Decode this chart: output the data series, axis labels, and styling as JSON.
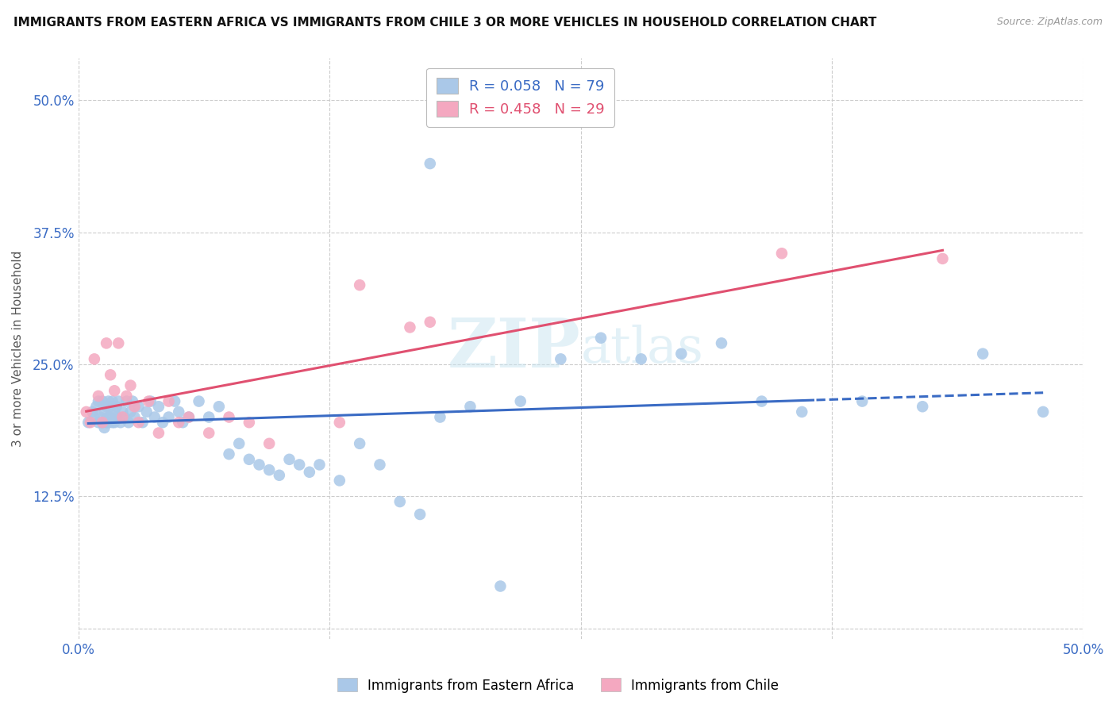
{
  "title": "IMMIGRANTS FROM EASTERN AFRICA VS IMMIGRANTS FROM CHILE 3 OR MORE VEHICLES IN HOUSEHOLD CORRELATION CHART",
  "source": "Source: ZipAtlas.com",
  "ylabel": "3 or more Vehicles in Household",
  "y_ticks": [
    0.0,
    0.125,
    0.25,
    0.375,
    0.5
  ],
  "y_tick_labels": [
    "",
    "12.5%",
    "25.0%",
    "37.5%",
    "50.0%"
  ],
  "x_lim": [
    0.0,
    0.5
  ],
  "y_lim": [
    -0.01,
    0.54
  ],
  "blue_R": "0.058",
  "blue_N": "79",
  "pink_R": "0.458",
  "pink_N": "29",
  "blue_scatter_color": "#aac8e8",
  "pink_scatter_color": "#f4a8c0",
  "blue_line_color": "#3a6bc4",
  "pink_line_color": "#e05070",
  "legend_label_blue": "Immigrants from Eastern Africa",
  "legend_label_pink": "Immigrants from Chile",
  "watermark_zip": "ZIP",
  "watermark_atlas": "atlas",
  "blue_scatter_x": [
    0.005,
    0.007,
    0.008,
    0.009,
    0.01,
    0.01,
    0.011,
    0.012,
    0.012,
    0.013,
    0.013,
    0.014,
    0.014,
    0.015,
    0.015,
    0.015,
    0.016,
    0.016,
    0.017,
    0.017,
    0.018,
    0.018,
    0.019,
    0.019,
    0.02,
    0.021,
    0.022,
    0.023,
    0.024,
    0.025,
    0.026,
    0.027,
    0.028,
    0.03,
    0.032,
    0.034,
    0.036,
    0.038,
    0.04,
    0.042,
    0.045,
    0.048,
    0.05,
    0.052,
    0.055,
    0.06,
    0.065,
    0.07,
    0.075,
    0.08,
    0.085,
    0.09,
    0.095,
    0.1,
    0.105,
    0.11,
    0.115,
    0.12,
    0.13,
    0.14,
    0.15,
    0.16,
    0.17,
    0.175,
    0.18,
    0.195,
    0.21,
    0.22,
    0.24,
    0.26,
    0.28,
    0.3,
    0.32,
    0.34,
    0.36,
    0.39,
    0.42,
    0.45,
    0.48
  ],
  "blue_scatter_y": [
    0.195,
    0.205,
    0.2,
    0.21,
    0.195,
    0.215,
    0.2,
    0.195,
    0.215,
    0.205,
    0.19,
    0.21,
    0.195,
    0.2,
    0.215,
    0.195,
    0.21,
    0.2,
    0.195,
    0.215,
    0.205,
    0.195,
    0.21,
    0.2,
    0.215,
    0.195,
    0.205,
    0.2,
    0.215,
    0.195,
    0.205,
    0.215,
    0.2,
    0.21,
    0.195,
    0.205,
    0.215,
    0.2,
    0.21,
    0.195,
    0.2,
    0.215,
    0.205,
    0.195,
    0.2,
    0.215,
    0.2,
    0.21,
    0.165,
    0.175,
    0.16,
    0.155,
    0.15,
    0.145,
    0.16,
    0.155,
    0.148,
    0.155,
    0.14,
    0.175,
    0.155,
    0.12,
    0.108,
    0.44,
    0.2,
    0.21,
    0.04,
    0.215,
    0.255,
    0.275,
    0.255,
    0.26,
    0.27,
    0.215,
    0.205,
    0.215,
    0.21,
    0.26,
    0.205
  ],
  "pink_scatter_x": [
    0.004,
    0.006,
    0.008,
    0.01,
    0.012,
    0.014,
    0.016,
    0.018,
    0.02,
    0.022,
    0.024,
    0.026,
    0.028,
    0.03,
    0.035,
    0.04,
    0.045,
    0.05,
    0.055,
    0.065,
    0.075,
    0.085,
    0.095,
    0.13,
    0.14,
    0.165,
    0.175,
    0.35,
    0.43
  ],
  "pink_scatter_y": [
    0.205,
    0.195,
    0.255,
    0.22,
    0.195,
    0.27,
    0.24,
    0.225,
    0.27,
    0.2,
    0.22,
    0.23,
    0.21,
    0.195,
    0.215,
    0.185,
    0.215,
    0.195,
    0.2,
    0.185,
    0.2,
    0.195,
    0.175,
    0.195,
    0.325,
    0.285,
    0.29,
    0.355,
    0.35
  ]
}
